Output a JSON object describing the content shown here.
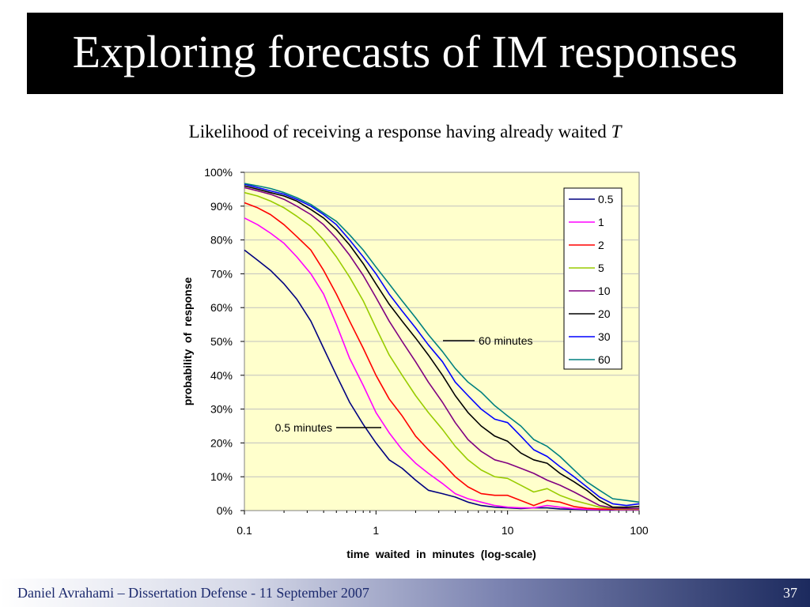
{
  "slide": {
    "title": "Exploring forecasts of IM responses",
    "subtitle": "Likelihood of receiving a response having already waited",
    "subtitle_var": "T"
  },
  "footer": {
    "text": "Daniel Avrahami – Dissertation Defense  - 11 September 2007",
    "page_number": "37"
  },
  "colors": {
    "title_bg": "#000000",
    "title_fg": "#ffffff",
    "plot_bg": "#ffffcc",
    "footer_dark": "#1c2a5e"
  },
  "chart_data": {
    "type": "line",
    "xlabel": "time  waited  in  minutes  (log-scale)",
    "ylabel": "probability  of  response",
    "xscale": "log",
    "xlim": [
      0.1,
      100
    ],
    "ylim": [
      0,
      100
    ],
    "x_ticks": [
      "0.1",
      "1",
      "10",
      "100"
    ],
    "y_ticks": [
      "0%",
      "10%",
      "20%",
      "30%",
      "40%",
      "50%",
      "60%",
      "70%",
      "80%",
      "90%",
      "100%"
    ],
    "grid": "horizontal",
    "legend_position": "top-right",
    "series": [
      {
        "name": "0.5",
        "color": "#000080",
        "x": [
          0.1,
          0.126,
          0.158,
          0.2,
          0.25,
          0.32,
          0.4,
          0.5,
          0.63,
          0.8,
          1,
          1.26,
          1.58,
          2,
          2.5,
          3.2,
          4,
          5,
          6.3,
          8,
          10,
          12.6,
          15.8,
          20,
          25,
          32,
          40,
          50,
          63,
          80,
          100
        ],
        "y": [
          77,
          74,
          71,
          67,
          62.5,
          56,
          48,
          40,
          32,
          25.5,
          20,
          15,
          12.5,
          9,
          6,
          5,
          4,
          2.5,
          1.5,
          1,
          0.8,
          0.6,
          0.8,
          0.8,
          0.5,
          0.4,
          0.3,
          0.2,
          0.2,
          0.6,
          0.6
        ]
      },
      {
        "name": "1",
        "color": "#ff00ff",
        "x": [
          0.1,
          0.126,
          0.158,
          0.2,
          0.25,
          0.32,
          0.4,
          0.5,
          0.63,
          0.8,
          1,
          1.26,
          1.58,
          2,
          2.5,
          3.2,
          4,
          5,
          6.3,
          8,
          10,
          12.6,
          15.8,
          20,
          25,
          32,
          40,
          50,
          63,
          80,
          100
        ],
        "y": [
          86.5,
          84.5,
          82,
          79,
          75,
          70,
          64,
          55,
          45,
          37,
          29,
          23,
          18,
          14,
          11,
          8,
          5,
          3.5,
          2.5,
          1.5,
          1,
          0.8,
          0.8,
          1.5,
          1,
          0.6,
          0.4,
          0.3,
          0.3,
          0.3,
          0.3
        ]
      },
      {
        "name": "2",
        "color": "#ff0000",
        "x": [
          0.1,
          0.126,
          0.158,
          0.2,
          0.25,
          0.32,
          0.4,
          0.5,
          0.63,
          0.8,
          1,
          1.26,
          1.58,
          2,
          2.5,
          3.2,
          4,
          5,
          6.3,
          8,
          10,
          12.6,
          15.8,
          20,
          25,
          32,
          40,
          50,
          63,
          80,
          100
        ],
        "y": [
          91,
          89.5,
          87.5,
          84.5,
          81,
          77,
          71,
          64,
          56,
          48,
          40,
          33,
          28,
          22,
          18,
          14,
          10,
          7,
          5,
          4.5,
          4.5,
          3,
          1.5,
          3,
          2.5,
          1.2,
          0.7,
          0.5,
          0.4,
          0.4,
          0.4
        ]
      },
      {
        "name": "5",
        "color": "#99cc00",
        "x": [
          0.1,
          0.126,
          0.158,
          0.2,
          0.25,
          0.32,
          0.4,
          0.5,
          0.63,
          0.8,
          1,
          1.26,
          1.58,
          2,
          2.5,
          3.2,
          4,
          5,
          6.3,
          8,
          10,
          12.6,
          15.8,
          20,
          25,
          32,
          40,
          50,
          63,
          80,
          100
        ],
        "y": [
          94,
          93,
          91.5,
          89.5,
          87,
          84,
          80,
          75,
          69,
          62,
          54,
          46,
          40,
          34,
          29,
          24,
          19,
          15,
          12,
          10,
          9.5,
          7.5,
          5.5,
          6.5,
          4.5,
          3,
          2,
          1,
          0.6,
          0.5,
          0.5
        ]
      },
      {
        "name": "10",
        "color": "#800080",
        "x": [
          0.1,
          0.126,
          0.158,
          0.2,
          0.25,
          0.32,
          0.4,
          0.5,
          0.63,
          0.8,
          1,
          1.26,
          1.58,
          2,
          2.5,
          3.2,
          4,
          5,
          6.3,
          8,
          10,
          12.6,
          15.8,
          20,
          25,
          32,
          40,
          50,
          63,
          80,
          100
        ],
        "y": [
          95.5,
          94.5,
          93.5,
          92,
          90,
          87.5,
          84.5,
          80.5,
          75.5,
          69.5,
          63,
          56,
          50,
          44,
          38,
          32,
          26,
          21,
          17.5,
          15,
          14,
          12.5,
          11,
          9,
          7.5,
          5.5,
          3.5,
          1.5,
          0.8,
          0.6,
          0.6
        ]
      },
      {
        "name": "20",
        "color": "#000000",
        "x": [
          0.1,
          0.126,
          0.158,
          0.2,
          0.25,
          0.32,
          0.4,
          0.5,
          0.63,
          0.8,
          1,
          1.26,
          1.58,
          2,
          2.5,
          3.2,
          4,
          5,
          6.3,
          8,
          10,
          12.6,
          15.8,
          20,
          25,
          32,
          40,
          50,
          63,
          80,
          100
        ],
        "y": [
          96,
          95,
          94,
          93,
          91.5,
          89,
          86.5,
          83,
          78.5,
          73,
          67,
          61,
          56,
          51,
          46,
          40,
          34,
          29,
          25,
          22,
          20.5,
          17,
          15,
          14,
          11,
          8.5,
          6,
          3,
          1,
          1,
          1.2
        ]
      },
      {
        "name": "30",
        "color": "#0000ff",
        "x": [
          0.1,
          0.126,
          0.158,
          0.2,
          0.25,
          0.32,
          0.4,
          0.5,
          0.63,
          0.8,
          1,
          1.26,
          1.58,
          2,
          2.5,
          3.2,
          4,
          5,
          6.3,
          8,
          10,
          12.6,
          15.8,
          20,
          25,
          32,
          40,
          50,
          63,
          80,
          100
        ],
        "y": [
          96.5,
          95.5,
          94.5,
          93.5,
          92,
          90,
          87.5,
          84.5,
          80,
          75,
          70,
          64,
          59,
          54,
          49,
          44,
          38,
          34,
          30,
          27,
          26,
          22,
          18,
          16,
          13,
          10,
          7,
          4,
          2,
          1.5,
          2
        ]
      },
      {
        "name": "60",
        "color": "#008080",
        "x": [
          0.1,
          0.126,
          0.158,
          0.2,
          0.25,
          0.32,
          0.4,
          0.5,
          0.63,
          0.8,
          1,
          1.26,
          1.58,
          2,
          2.5,
          3.2,
          4,
          5,
          6.3,
          8,
          10,
          12.6,
          15.8,
          20,
          25,
          32,
          40,
          50,
          63,
          80,
          100
        ],
        "y": [
          96.7,
          96,
          95.2,
          94,
          92.5,
          90.5,
          88,
          85.5,
          81.5,
          77,
          72,
          67,
          62,
          57,
          52,
          47,
          42,
          38,
          35,
          31,
          28,
          25,
          21,
          19,
          16,
          12,
          8.5,
          6,
          3.5,
          3,
          2.5
        ]
      }
    ],
    "annotations": [
      {
        "text": "60 minutes",
        "series": "60"
      },
      {
        "text": "0.5 minutes",
        "series": "0.5"
      }
    ]
  }
}
